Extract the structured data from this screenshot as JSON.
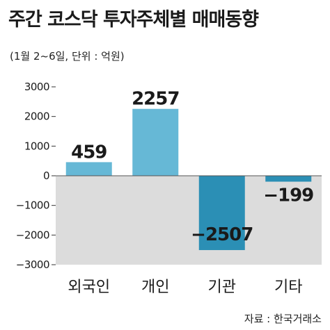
{
  "header": {
    "title": "주간 코스닥 투자주체별 매매동향",
    "subtitle": "(1월 2~6일, 단위 : 억원)"
  },
  "footer": {
    "source": "자료 : 한국거래소"
  },
  "colors": {
    "positive_bar": "#66b8d6",
    "negative_bar": "#2b8fb5",
    "negative_region": "#dcdcdc"
  },
  "chart_data": {
    "type": "bar",
    "categories": [
      "외국인",
      "개인",
      "기관",
      "기타"
    ],
    "values": [
      459,
      2257,
      -2507,
      -199
    ],
    "value_labels": [
      "459",
      "2257",
      "−2507",
      "−199"
    ],
    "ylim": [
      -3000,
      3000
    ],
    "yticks": [
      3000,
      2000,
      1000,
      0,
      -1000,
      -2000,
      -3000
    ],
    "ytick_labels": [
      "3000",
      "2000",
      "1000",
      "0",
      "−1000",
      "−2000",
      "−3000"
    ],
    "grid": false,
    "legend": "none"
  }
}
